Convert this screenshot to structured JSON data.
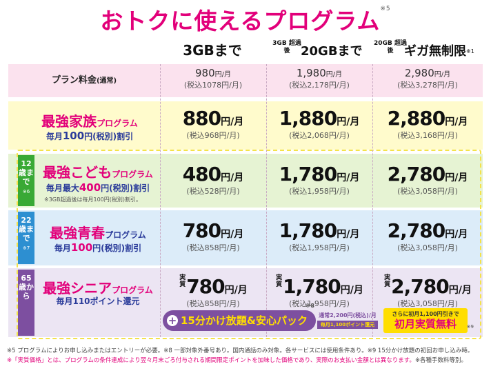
{
  "title": "おトクに使えるプログラム",
  "title_note": "※5",
  "columns": [
    {
      "label": "3GBまで"
    },
    {
      "small": "3GB 超過後",
      "label": "20GBまで"
    },
    {
      "small": "20GB 超過後",
      "label": "ギガ無制限",
      "note": "※1"
    }
  ],
  "plan_fee": {
    "label": "プラン料金",
    "label_suffix": "(通常)",
    "prices": [
      {
        "main": "980",
        "unit": "円/月",
        "tax": "(税込1078円/月)"
      },
      {
        "main": "1,980",
        "unit": "円/月",
        "tax": "(税込2,178円/月)"
      },
      {
        "main": "2,980",
        "unit": "円/月",
        "tax": "(税込3,278円/月)"
      }
    ]
  },
  "family": {
    "name_big": "最強家族",
    "name_small": "プログラム",
    "discount_pre": "毎月",
    "discount_amt": "100",
    "discount_post": "円(税別)割引",
    "prices": [
      {
        "main": "880",
        "unit": "円/月",
        "tax": "(税込968円/月)"
      },
      {
        "main": "1,880",
        "unit": "円/月",
        "tax": "(税込2,068円/月)"
      },
      {
        "main": "2,880",
        "unit": "円/月",
        "tax": "(税込3,168円/月)"
      }
    ]
  },
  "kids": {
    "side": "12歳まで",
    "side_note": "※6",
    "name_big": "最強こども",
    "name_small": "プログラム",
    "discount_pre": "毎月最大",
    "discount_amt": "400",
    "discount_post": "円(税別)割引",
    "note": "※3GB超過後は毎月100円(税別)割引。",
    "prices": [
      {
        "main": "480",
        "unit": "円/月",
        "tax": "(税込528円/月)"
      },
      {
        "main": "1,780",
        "unit": "円/月",
        "tax": "(税込1,958円/月)"
      },
      {
        "main": "2,780",
        "unit": "円/月",
        "tax": "(税込3,058円/月)"
      }
    ]
  },
  "youth": {
    "side": "22歳まで",
    "side_note": "※7",
    "name_big": "最強青春",
    "name_small": "プログラム",
    "discount_pre": "毎月",
    "discount_amt": "100",
    "discount_post": "円(税別)割引",
    "prices": [
      {
        "main": "780",
        "unit": "円/月",
        "tax": "(税込858円/月)"
      },
      {
        "main": "1,780",
        "unit": "円/月",
        "tax": "(税込1,958円/月)"
      },
      {
        "main": "2,780",
        "unit": "円/月",
        "tax": "(税込3,058円/月)"
      }
    ]
  },
  "senior": {
    "side": "65歳から",
    "name_big": "最強シニア",
    "name_small": "プログラム",
    "discount": "毎月110ポイント還元",
    "jisshitsu": "実質",
    "prices": [
      {
        "main": "780",
        "unit": "円/月",
        "tax": "(税込858円/月)"
      },
      {
        "main": "1,780",
        "unit": "円/月",
        "tax": "(税込1,958円/月)"
      },
      {
        "main": "2,780",
        "unit": "円/月",
        "tax": "(税込3,058円/月)"
      }
    ],
    "pack_label": "15分かけ放題&安心パック",
    "pack_note": "※8",
    "pack_price": "通常2,200円(税込)/月",
    "pack_points": "毎月1,100ポイント還元",
    "free_line1": "さらに初月1,100円引きで",
    "free_line2": "初月実質無料",
    "free_note": "※9"
  },
  "footnotes": {
    "line1": "※5 プログラムによりお申し込みまたはエントリーが必要。※8 一部対象外番号あり。国内通話のみ対象。各サービスには使用条件あり。※9 15分かけ放題の初回お申し込み時。",
    "line2_pink": "※「実質価格」とは、プログラムの条件達成により翌々月末ごろ付与される期間限定ポイントを加味した価格であり、実際のお支払い金額とは異なります。",
    "line2_gray": "※各種手数料等別。"
  }
}
